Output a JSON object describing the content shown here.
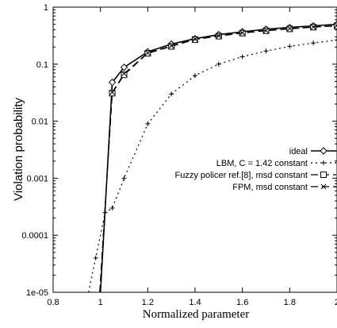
{
  "chart_data": {
    "type": "line",
    "title": "",
    "xlabel": "Normalized parameter",
    "ylabel": "Violation probability",
    "xlim": [
      0.8,
      2.0
    ],
    "ylim": [
      1e-05,
      1
    ],
    "yscale": "log",
    "grid": false,
    "legend_position": "center-right",
    "x_ticks": [
      {
        "value": 0.8,
        "label": "0.8"
      },
      {
        "value": 1.0,
        "label": "1"
      },
      {
        "value": 1.2,
        "label": "1.2"
      },
      {
        "value": 1.4,
        "label": "1.4"
      },
      {
        "value": 1.6,
        "label": "1.6"
      },
      {
        "value": 1.8,
        "label": "1.8"
      },
      {
        "value": 2.0,
        "label": "2"
      }
    ],
    "y_ticks": [
      {
        "value": 1e-05,
        "label": "1e-05"
      },
      {
        "value": 0.0001,
        "label": "0.0001"
      },
      {
        "value": 0.001,
        "label": "0.001"
      },
      {
        "value": 0.01,
        "label": "0.01"
      },
      {
        "value": 0.1,
        "label": "0.1"
      },
      {
        "value": 1,
        "label": "1"
      }
    ],
    "series": [
      {
        "name": "ideal",
        "marker": "diamond",
        "dash": "",
        "x": [
          1.0,
          1.05,
          1.1,
          1.2,
          1.3,
          1.4,
          1.5,
          1.6,
          1.7,
          1.8,
          1.9,
          2.0
        ],
        "y": [
          1e-05,
          0.048,
          0.088,
          0.165,
          0.225,
          0.28,
          0.33,
          0.37,
          0.41,
          0.44,
          0.47,
          0.5
        ]
      },
      {
        "name": "LBM, C = 1.42 constant",
        "marker": "plus",
        "dash": "2,4",
        "x": [
          0.95,
          0.98,
          1.02,
          1.05,
          1.1,
          1.2,
          1.3,
          1.4,
          1.5,
          1.6,
          1.7,
          1.8,
          1.9,
          2.0
        ],
        "y": [
          1e-05,
          4e-05,
          0.00025,
          0.0003,
          0.001,
          0.009,
          0.03,
          0.063,
          0.1,
          0.135,
          0.17,
          0.205,
          0.235,
          0.265
        ]
      },
      {
        "name": "Fuzzy policer ref.[8], msd constant",
        "marker": "square",
        "dash": "9,5",
        "x": [
          0.997,
          1.05,
          1.1,
          1.2,
          1.3,
          1.4,
          1.5,
          1.6,
          1.7,
          1.8,
          1.9,
          2.0
        ],
        "y": [
          1e-05,
          0.031,
          0.065,
          0.155,
          0.205,
          0.27,
          0.31,
          0.35,
          0.385,
          0.415,
          0.445,
          0.47
        ]
      },
      {
        "name": "FPM, msd constant",
        "marker": "cross",
        "dash": "9,5",
        "x": [
          0.997,
          1.05,
          1.1,
          1.2,
          1.3,
          1.4,
          1.5,
          1.6,
          1.7,
          1.8,
          1.9,
          2.0
        ],
        "y": [
          1e-05,
          0.032,
          0.068,
          0.158,
          0.21,
          0.275,
          0.315,
          0.355,
          0.39,
          0.42,
          0.45,
          0.475
        ]
      }
    ]
  }
}
